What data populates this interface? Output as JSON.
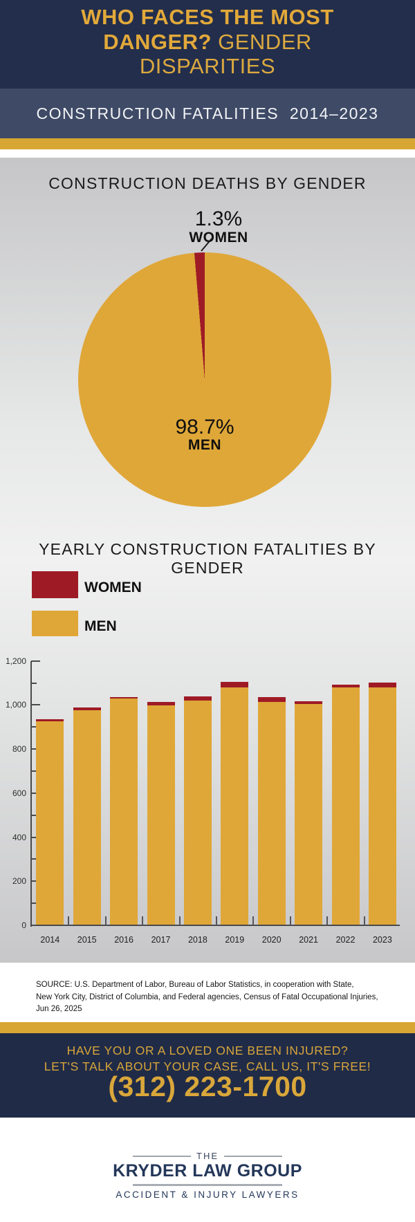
{
  "colors": {
    "gold": "#dfa738",
    "dark_red": "#9e1b26",
    "header_navy": "#232e4c",
    "band_navy": "#3e4a66",
    "footer_navy": "#202b48",
    "stripe_gold": "#d8a633"
  },
  "header": {
    "title_bold": "WHO FACES THE MOST DANGER?",
    "title_light": "GENDER DISPARITIES",
    "subtitle": "CONSTRUCTION FATALITIES  2014–2023"
  },
  "pie_section": {
    "title": "CONSTRUCTION DEATHS BY GENDER",
    "women_pct": "1.3%",
    "women_label": "WOMEN",
    "men_pct": "98.7%",
    "men_label": "MEN"
  },
  "bar_section": {
    "title": "YEARLY CONSTRUCTION FATALITIES BY GENDER",
    "legend": [
      {
        "label": "WOMEN",
        "color": "#9e1b26"
      },
      {
        "label": "MEN",
        "color": "#dfa738"
      }
    ]
  },
  "chart_data": [
    {
      "type": "pie",
      "title": "CONSTRUCTION DEATHS BY GENDER",
      "slices": [
        {
          "label": "MEN",
          "value": 98.7
        },
        {
          "label": "WOMEN",
          "value": 1.3
        }
      ],
      "unit": "%"
    },
    {
      "type": "bar",
      "stacked": true,
      "title": "YEARLY CONSTRUCTION FATALITIES BY GENDER",
      "categories": [
        "2014",
        "2015",
        "2016",
        "2017",
        "2018",
        "2019",
        "2020",
        "2021",
        "2022",
        "2023"
      ],
      "series": [
        {
          "name": "MEN",
          "color": "#dfa738",
          "values": [
            923,
            972,
            1026,
            995,
            1018,
            1078,
            1010,
            1001,
            1076,
            1076
          ]
        },
        {
          "name": "WOMEN",
          "color": "#9e1b26",
          "values": [
            8,
            13,
            7,
            17,
            19,
            23,
            22,
            13,
            14,
            22
          ]
        }
      ],
      "xlabel": "",
      "ylabel": "",
      "ylim": [
        0,
        1200
      ],
      "yticks": [
        0,
        200,
        400,
        600,
        800,
        1000,
        1200
      ],
      "legend_position": "top-left",
      "grid": false
    }
  ],
  "source": {
    "line1": "SOURCE: U.S. Department of Labor, Bureau of Labor Statistics, in cooperation with State,",
    "line2": "New York City, District of Columbia, and Federal agencies, Census of Fatal Occupational Injuries,",
    "line3": "Jun 26, 2025"
  },
  "cta": {
    "line1": "HAVE YOU OR A LOVED ONE BEEN INJURED?",
    "line2": "LET'S TALK ABOUT YOUR CASE, CALL US, IT'S FREE!",
    "phone": "(312) 223-1700"
  },
  "logo": {
    "the": "THE",
    "name": "KRYDER LAW GROUP",
    "tagline": "ACCIDENT & INJURY LAWYERS"
  }
}
